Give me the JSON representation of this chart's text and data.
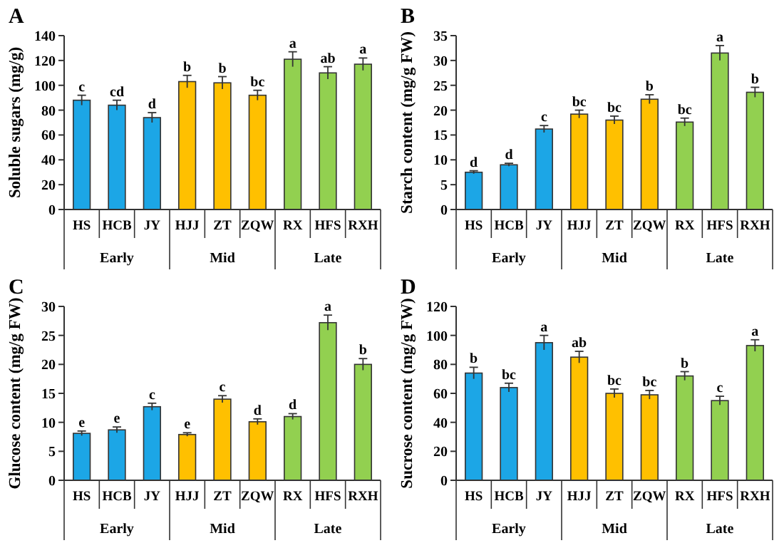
{
  "chart_data": [
    {
      "type": "bar",
      "title": "A",
      "ylabel": "Soluble sugars (mg/g)",
      "categories": [
        "HS",
        "HCB",
        "JY",
        "HJJ",
        "ZT",
        "ZQW",
        "RX",
        "HFS",
        "RXH"
      ],
      "values": [
        88,
        84,
        74,
        103,
        102,
        92,
        121,
        110,
        117
      ],
      "errors": [
        4,
        4,
        4,
        5,
        5,
        4,
        6,
        5,
        5
      ],
      "colors": [
        "#1ca6e6",
        "#1ca6e6",
        "#1ca6e6",
        "#ffc000",
        "#ffc000",
        "#ffc000",
        "#92d050",
        "#92d050",
        "#92d050"
      ],
      "ylim": [
        0,
        140
      ],
      "yticks": [
        0,
        20,
        40,
        60,
        80,
        100,
        120,
        140
      ],
      "grid": false,
      "annotations": [
        {
          "text": "c",
          "x": "HS",
          "y": 92
        },
        {
          "text": "cd",
          "x": "HCB",
          "y": 88
        },
        {
          "text": "d",
          "x": "JY",
          "y": 78
        },
        {
          "text": "b",
          "x": "HJJ",
          "y": 108
        },
        {
          "text": "b",
          "x": "ZT",
          "y": 107
        },
        {
          "text": "bc",
          "x": "ZQW",
          "y": 96
        },
        {
          "text": "a",
          "x": "RX",
          "y": 127
        },
        {
          "text": "ab",
          "x": "HFS",
          "y": 115
        },
        {
          "text": "a",
          "x": "RXH",
          "y": 122
        },
        "Early",
        "Mid",
        "Late"
      ]
    },
    {
      "type": "bar",
      "title": "B",
      "ylabel": "Starch content (mg/g FW)",
      "categories": [
        "HS",
        "HCB",
        "JY",
        "HJJ",
        "ZT",
        "ZQW",
        "RX",
        "HFS",
        "RXH"
      ],
      "values": [
        7.5,
        9,
        16.2,
        19.2,
        18,
        22.2,
        17.6,
        31.5,
        23.6
      ],
      "errors": [
        0.3,
        0.3,
        0.7,
        0.8,
        0.8,
        0.9,
        0.8,
        1.5,
        1
      ],
      "colors": [
        "#1ca6e6",
        "#1ca6e6",
        "#1ca6e6",
        "#ffc000",
        "#ffc000",
        "#ffc000",
        "#92d050",
        "#92d050",
        "#92d050"
      ],
      "ylim": [
        0,
        35
      ],
      "yticks": [
        0,
        5,
        10,
        15,
        20,
        25,
        30,
        35
      ],
      "grid": false,
      "annotations": [
        {
          "text": "d",
          "x": "HS",
          "y": 7.8
        },
        {
          "text": "d",
          "x": "HCB",
          "y": 9.3
        },
        {
          "text": "c",
          "x": "JY",
          "y": 16.9
        },
        {
          "text": "bc",
          "x": "HJJ",
          "y": 20
        },
        {
          "text": "bc",
          "x": "ZT",
          "y": 18.8
        },
        {
          "text": "b",
          "x": "ZQW",
          "y": 23.1
        },
        {
          "text": "bc",
          "x": "RX",
          "y": 18.4
        },
        {
          "text": "a",
          "x": "HFS",
          "y": 33
        },
        {
          "text": "b",
          "x": "RXH",
          "y": 24.6
        },
        "Early",
        "Mid",
        "Late"
      ]
    },
    {
      "type": "bar",
      "title": "C",
      "ylabel": "Glucose content (mg/g FW)",
      "categories": [
        "HS",
        "HCB",
        "JY",
        "HJJ",
        "ZT",
        "ZQW",
        "RX",
        "HFS",
        "RXH"
      ],
      "values": [
        8.1,
        8.7,
        12.7,
        7.9,
        14,
        10.1,
        11,
        27.2,
        20
      ],
      "errors": [
        0.4,
        0.5,
        0.6,
        0.3,
        0.6,
        0.5,
        0.5,
        1.3,
        1
      ],
      "colors": [
        "#1ca6e6",
        "#1ca6e6",
        "#1ca6e6",
        "#ffc000",
        "#ffc000",
        "#ffc000",
        "#92d050",
        "#92d050",
        "#92d050"
      ],
      "ylim": [
        0,
        30
      ],
      "yticks": [
        0,
        5,
        10,
        15,
        20,
        25,
        30
      ],
      "grid": false,
      "annotations": [
        {
          "text": "e",
          "x": "HS",
          "y": 8.5
        },
        {
          "text": "e",
          "x": "HCB",
          "y": 9.2
        },
        {
          "text": "c",
          "x": "JY",
          "y": 13.3
        },
        {
          "text": "e",
          "x": "HJJ",
          "y": 8.2
        },
        {
          "text": "c",
          "x": "ZT",
          "y": 14.6
        },
        {
          "text": "d",
          "x": "ZQW",
          "y": 10.6
        },
        {
          "text": "d",
          "x": "RX",
          "y": 11.5
        },
        {
          "text": "a",
          "x": "HFS",
          "y": 28.5
        },
        {
          "text": "b",
          "x": "RXH",
          "y": 21
        },
        "Early",
        "Mid",
        "Late"
      ]
    },
    {
      "type": "bar",
      "title": "D",
      "ylabel": "Sucrose content (mg/g FW)",
      "categories": [
        "HS",
        "HCB",
        "JY",
        "HJJ",
        "ZT",
        "ZQW",
        "RX",
        "HFS",
        "RXH"
      ],
      "values": [
        74,
        64,
        95,
        85,
        60,
        59,
        72,
        55,
        93
      ],
      "errors": [
        4,
        3,
        5,
        4,
        3,
        3,
        3,
        3,
        4
      ],
      "colors": [
        "#1ca6e6",
        "#1ca6e6",
        "#1ca6e6",
        "#ffc000",
        "#ffc000",
        "#ffc000",
        "#92d050",
        "#92d050",
        "#92d050"
      ],
      "ylim": [
        0,
        120
      ],
      "yticks": [
        0,
        20,
        40,
        60,
        80,
        100,
        120
      ],
      "grid": false,
      "annotations": [
        {
          "text": "b",
          "x": "HS",
          "y": 78
        },
        {
          "text": "bc",
          "x": "HCB",
          "y": 67
        },
        {
          "text": "a",
          "x": "JY",
          "y": 100
        },
        {
          "text": "ab",
          "x": "HJJ",
          "y": 89
        },
        {
          "text": "bc",
          "x": "ZT",
          "y": 63
        },
        {
          "text": "bc",
          "x": "ZQW",
          "y": 62
        },
        {
          "text": "b",
          "x": "RX",
          "y": 75
        },
        {
          "text": "c",
          "x": "HFS",
          "y": 58
        },
        {
          "text": "a",
          "x": "RXH",
          "y": 97
        },
        "Early",
        "Mid",
        "Late"
      ]
    }
  ]
}
